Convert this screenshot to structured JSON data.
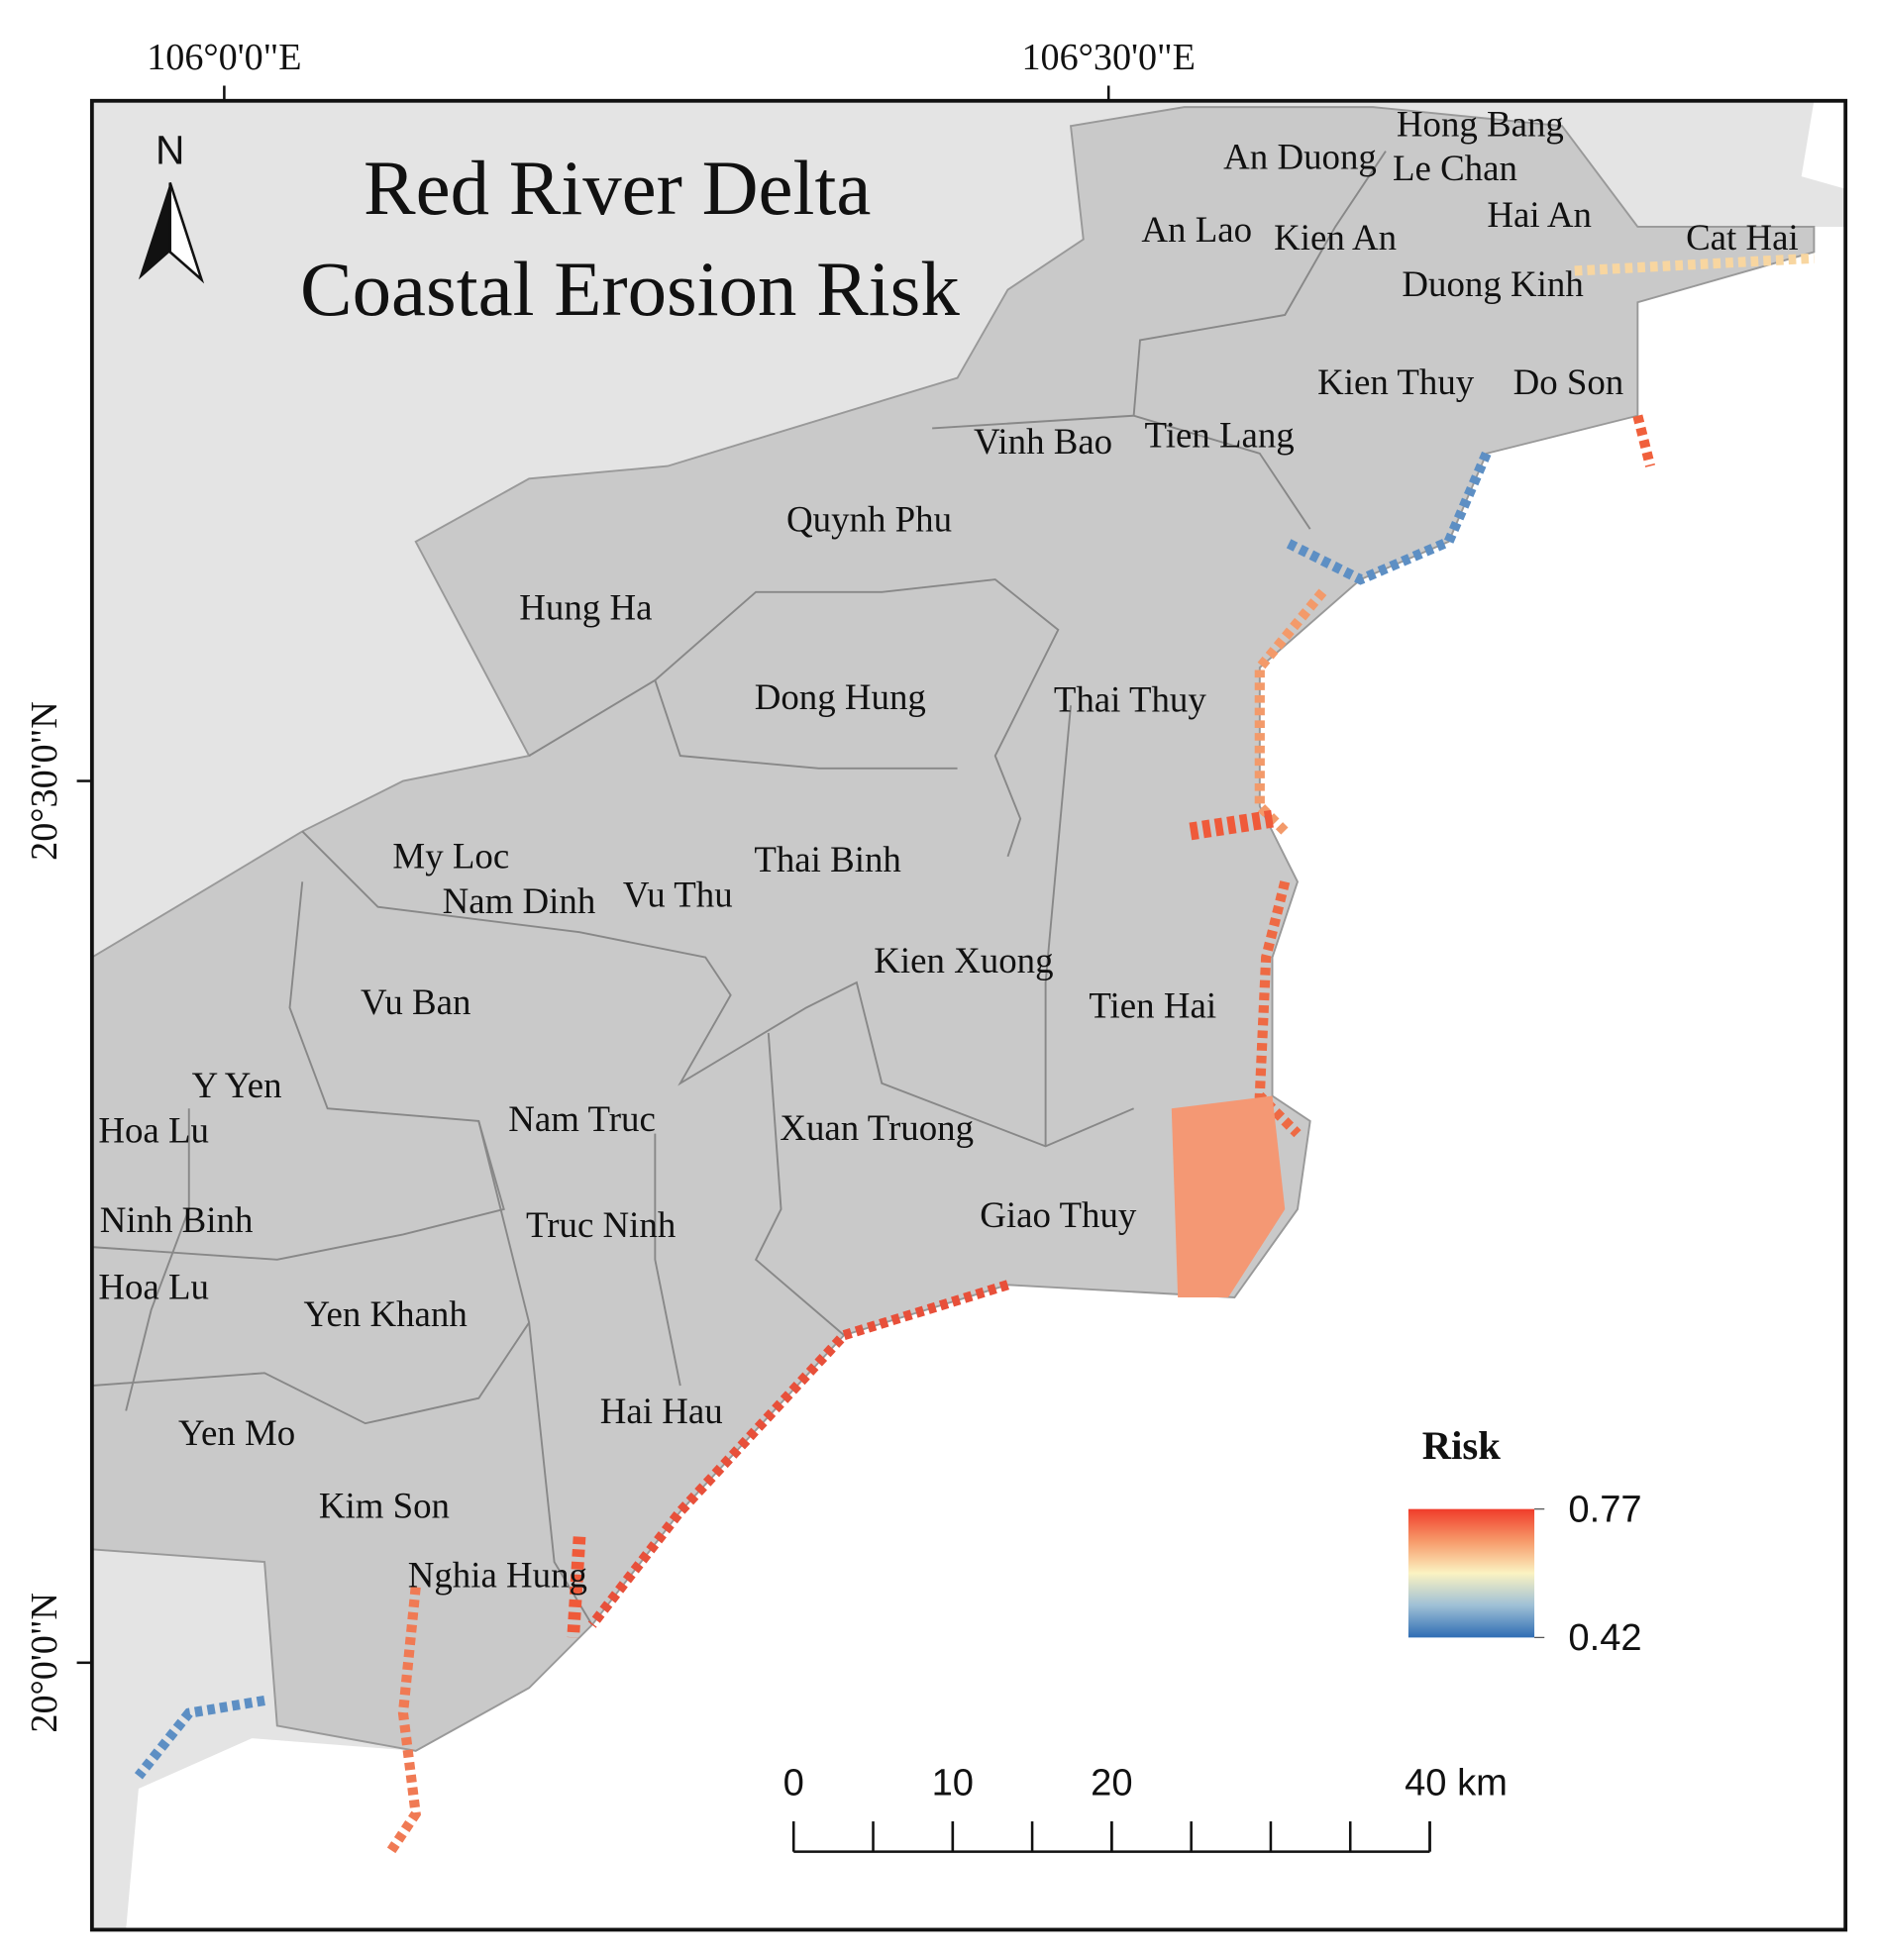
{
  "title": [
    "Red River Delta",
    "Coastal Erosion Risk"
  ],
  "north": "N",
  "graticule": {
    "x_labels": [
      "106°0'0\"E",
      "106°30'0\"E"
    ],
    "y_labels": [
      "20°30'0\"N",
      "20°0'0\"N"
    ]
  },
  "districts": [
    "Hong Bang",
    "An Duong",
    "Le Chan",
    "Hai An",
    "An Lao",
    "Kien An",
    "Cat Hai",
    "Duong Kinh",
    "Kien Thuy",
    "Do Son",
    "Vinh Bao",
    "Tien Lang",
    "Quynh Phu",
    "Hung Ha",
    "Dong Hung",
    "Thai Thuy",
    "My Loc",
    "Thai Binh",
    "Nam Dinh",
    "Vu Thu",
    "Kien Xuong",
    "Tien Hai",
    "Vu Ban",
    "Y Yen",
    "Hoa Lu",
    "Nam Truc",
    "Xuan Truong",
    "Ninh Binh",
    "Truc Ninh",
    "Giao Thuy",
    "Hoa Lu",
    "Yen Khanh",
    "Hai Hau",
    "Yen Mo",
    "Kim Son",
    "Nghia Hung"
  ],
  "legend": {
    "title": "Risk",
    "max": 0.77,
    "min": 0.42
  },
  "scale_bar": {
    "xlim": [
      0,
      40
    ],
    "ticks": [
      0,
      10,
      20,
      {
        "value": 40,
        "label": "40 km"
      }
    ]
  }
}
